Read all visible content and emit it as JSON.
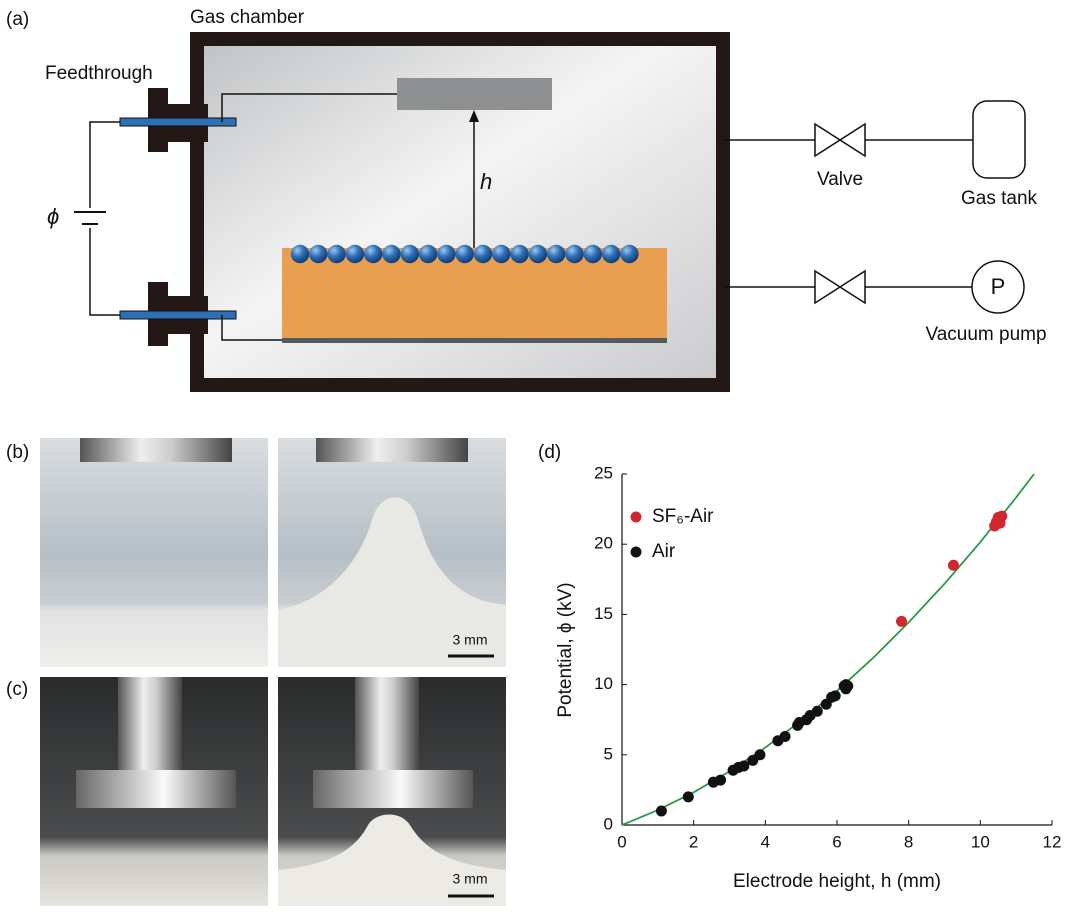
{
  "panels": {
    "a": "(a)",
    "b": "(b)",
    "c": "(c)",
    "d": "(d)"
  },
  "diagram": {
    "chamber": "Gas chamber",
    "feedthrough": "Feedthrough",
    "potential": "ϕ",
    "height": "h",
    "valve": "Valve",
    "tank": "Gas tank",
    "pump_symbol": "P",
    "pump": "Vacuum pump"
  },
  "photos": {
    "b_scale": "3 mm",
    "c_scale": "3 mm"
  },
  "chart_data": {
    "type": "scatter",
    "xlabel": "Electrode height, h (mm)",
    "ylabel": "Potential, ϕ (kV)",
    "xlim": [
      0,
      12
    ],
    "ylim": [
      0,
      25
    ],
    "xticks": [
      0,
      2,
      4,
      6,
      8,
      10,
      12
    ],
    "yticks": [
      0,
      5,
      10,
      15,
      20,
      25
    ],
    "legend": "upper left",
    "series": [
      {
        "name": "SF₆-Air",
        "color": "#d0282e",
        "x": [
          7.8,
          9.25,
          10.4,
          10.45,
          10.5,
          10.55,
          10.6
        ],
        "values": [
          14.5,
          18.5,
          21.3,
          21.6,
          21.9,
          21.5,
          22
        ]
      },
      {
        "name": "Air",
        "color": "#111111",
        "x": [
          1.1,
          1.85,
          2.55,
          2.75,
          3.1,
          3.25,
          3.4,
          3.65,
          3.85,
          4.35,
          4.55,
          4.9,
          4.95,
          5.15,
          5.25,
          5.45,
          5.7,
          5.85,
          5.95,
          6.2,
          6.25,
          6.3,
          6.25
        ],
        "values": [
          1,
          2,
          3.05,
          3.2,
          3.9,
          4.1,
          4.2,
          4.6,
          5,
          6,
          6.3,
          7.1,
          7.3,
          7.5,
          7.8,
          8.1,
          8.6,
          9.1,
          9.2,
          9.9,
          10,
          9.9,
          9.7
        ]
      }
    ],
    "fit": {
      "color": "#2b9a48",
      "x": [
        0,
        1,
        2,
        3,
        4,
        5,
        6,
        7,
        8,
        9,
        10,
        11,
        11.5
      ],
      "values": [
        0,
        1.06,
        2.33,
        3.82,
        5.52,
        7.43,
        9.55,
        11.88,
        14.43,
        17.18,
        20.15,
        23.33,
        25
      ]
    }
  }
}
